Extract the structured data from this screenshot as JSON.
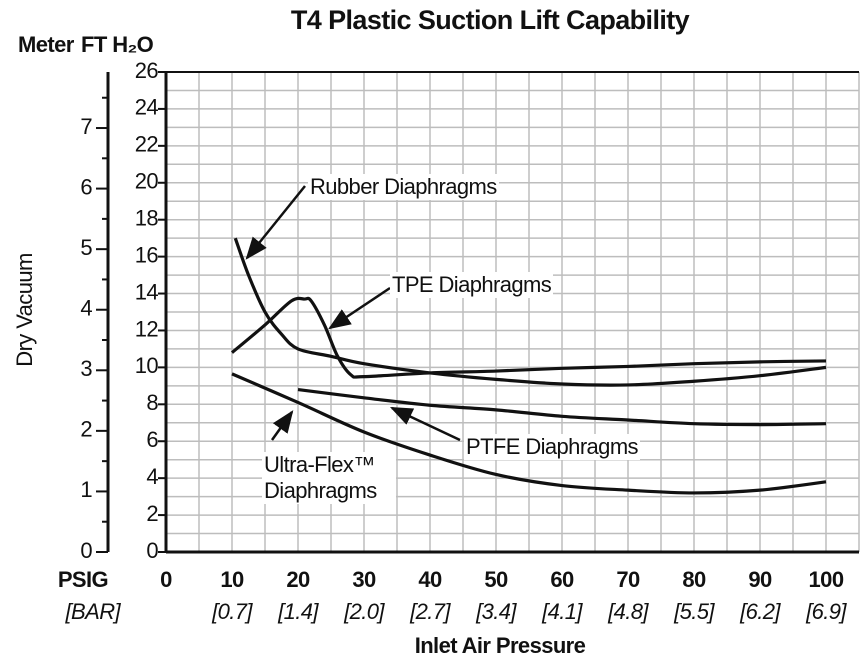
{
  "chart_data": {
    "type": "line",
    "title": "T4 Plastic Suction Lift Capability",
    "y_label": "Dry Vacuum",
    "y_unit_label": "FT H₂O",
    "y2_unit_label": "Meter",
    "x_label": "Inlet Air Pressure",
    "x_unit_label": "PSIG",
    "x2_unit_label": "[BAR]",
    "xlim": [
      0,
      105
    ],
    "xticks": [
      0,
      10,
      20,
      30,
      40,
      50,
      60,
      70,
      80,
      90,
      100
    ],
    "x2ticks": [
      {
        "value": 10,
        "label": "[0.7]"
      },
      {
        "value": 20,
        "label": "[1.4]"
      },
      {
        "value": 30,
        "label": "[2.0]"
      },
      {
        "value": 40,
        "label": "[2.7]"
      },
      {
        "value": 50,
        "label": "[3.4]"
      },
      {
        "value": 60,
        "label": "[4.1]"
      },
      {
        "value": 70,
        "label": "[4.8]"
      },
      {
        "value": 80,
        "label": "[5.5]"
      },
      {
        "value": 90,
        "label": "[6.2]"
      },
      {
        "value": 100,
        "label": "[6.9]"
      }
    ],
    "xminorticks": [
      0,
      5,
      10,
      15,
      20,
      25,
      30,
      35,
      40,
      45,
      50,
      55,
      60,
      65,
      70,
      75,
      80,
      85,
      90,
      95,
      100,
      105
    ],
    "ylim": [
      0,
      26
    ],
    "yticks": [
      0,
      2,
      4,
      6,
      8,
      10,
      12,
      14,
      16,
      18,
      20,
      22,
      24,
      26
    ],
    "yminorticks": [
      0,
      1,
      2,
      3,
      4,
      5,
      6,
      7,
      8,
      9,
      10,
      11,
      12,
      13,
      14,
      15,
      16,
      17,
      18,
      19,
      20,
      21,
      22,
      23,
      24,
      25,
      26
    ],
    "y2lim": [
      0,
      7.925
    ],
    "y2ticks": [
      0,
      1,
      2,
      3,
      4,
      5,
      6,
      7
    ],
    "y2minorticks": [
      0.5,
      1.5,
      2.5,
      3.5,
      4.5,
      5.5,
      6.5,
      7.5
    ],
    "grid": true,
    "series": [
      {
        "name": "Rubber Diaphragms",
        "color": "#111111",
        "x": [
          10.5,
          12.5,
          15,
          17.5,
          20,
          25,
          30,
          40,
          50,
          60,
          70,
          80,
          90,
          100
        ],
        "values": [
          17,
          15,
          13,
          11.8,
          11,
          10.6,
          10.2,
          9.7,
          9.35,
          9.1,
          9.05,
          9.25,
          9.55,
          10
        ]
      },
      {
        "name": "TPE Diaphragms",
        "color": "#111111",
        "x": [
          10,
          15,
          19,
          21,
          22,
          24,
          26,
          28,
          30,
          40,
          50,
          60,
          70,
          80,
          90,
          100
        ],
        "values": [
          10.8,
          12.3,
          13.6,
          13.7,
          13.6,
          12.3,
          10.6,
          9.6,
          9.5,
          9.7,
          9.8,
          9.95,
          10.05,
          10.2,
          10.3,
          10.35
        ]
      },
      {
        "name": "PTFE Diaphragms",
        "color": "#111111",
        "x": [
          20,
          30,
          40,
          50,
          60,
          70,
          80,
          90,
          100
        ],
        "values": [
          8.8,
          8.35,
          7.95,
          7.7,
          7.35,
          7.15,
          6.95,
          6.9,
          6.95
        ]
      },
      {
        "name": "Ultra-Flex™ Diaphragms",
        "color": "#111111",
        "x": [
          10,
          20,
          30,
          40,
          50,
          60,
          70,
          80,
          90,
          100
        ],
        "values": [
          9.65,
          8.1,
          6.5,
          5.25,
          4.2,
          3.6,
          3.35,
          3.2,
          3.35,
          3.8
        ]
      }
    ]
  }
}
